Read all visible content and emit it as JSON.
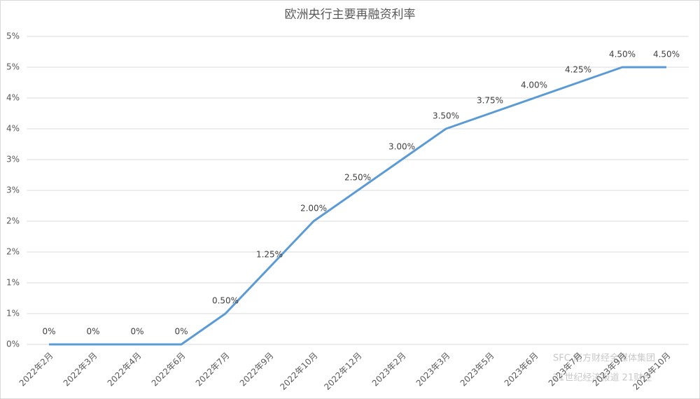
{
  "chart_data": {
    "type": "line",
    "title": "欧洲央行主要再融资利率",
    "categories": [
      "2022年2月",
      "2022年3月",
      "2022年4月",
      "2022年6月",
      "2022年7月",
      "2022年9月",
      "2022年10月",
      "2022年12月",
      "2023年2月",
      "2023年3月",
      "2023年5月",
      "2023年6月",
      "2023年7月",
      "2023年9月",
      "2023年10月"
    ],
    "series": [
      {
        "name": "主要再融资利率",
        "color": "#5b9bd5",
        "values": [
          0,
          0,
          0,
          0,
          0.5,
          1.25,
          2.0,
          2.5,
          3.0,
          3.5,
          3.75,
          4.0,
          4.25,
          4.5,
          4.5
        ],
        "value_labels": [
          "0%",
          "0%",
          "0%",
          "0%",
          "0.50%",
          "1.25%",
          "2.00%",
          "2.50%",
          "3.00%",
          "3.50%",
          "3.75%",
          "4.00%",
          "4.25%",
          "4.50%",
          "4.50%"
        ]
      }
    ],
    "ylim": [
      0,
      5
    ],
    "yticks": [
      {
        "value": 0,
        "label": "0%"
      },
      {
        "value": 0.5,
        "label": "1%"
      },
      {
        "value": 1,
        "label": "1%"
      },
      {
        "value": 1.5,
        "label": "2%"
      },
      {
        "value": 2,
        "label": "2%"
      },
      {
        "value": 2.5,
        "label": "3%"
      },
      {
        "value": 3,
        "label": "3%"
      },
      {
        "value": 3.5,
        "label": "4%"
      },
      {
        "value": 4,
        "label": "4%"
      },
      {
        "value": 4.5,
        "label": "5%"
      },
      {
        "value": 5,
        "label": "5%"
      }
    ],
    "grid": true,
    "watermark": [
      "SFC 南方财经全媒体集团",
      "21世纪经济报道 21财经"
    ]
  }
}
